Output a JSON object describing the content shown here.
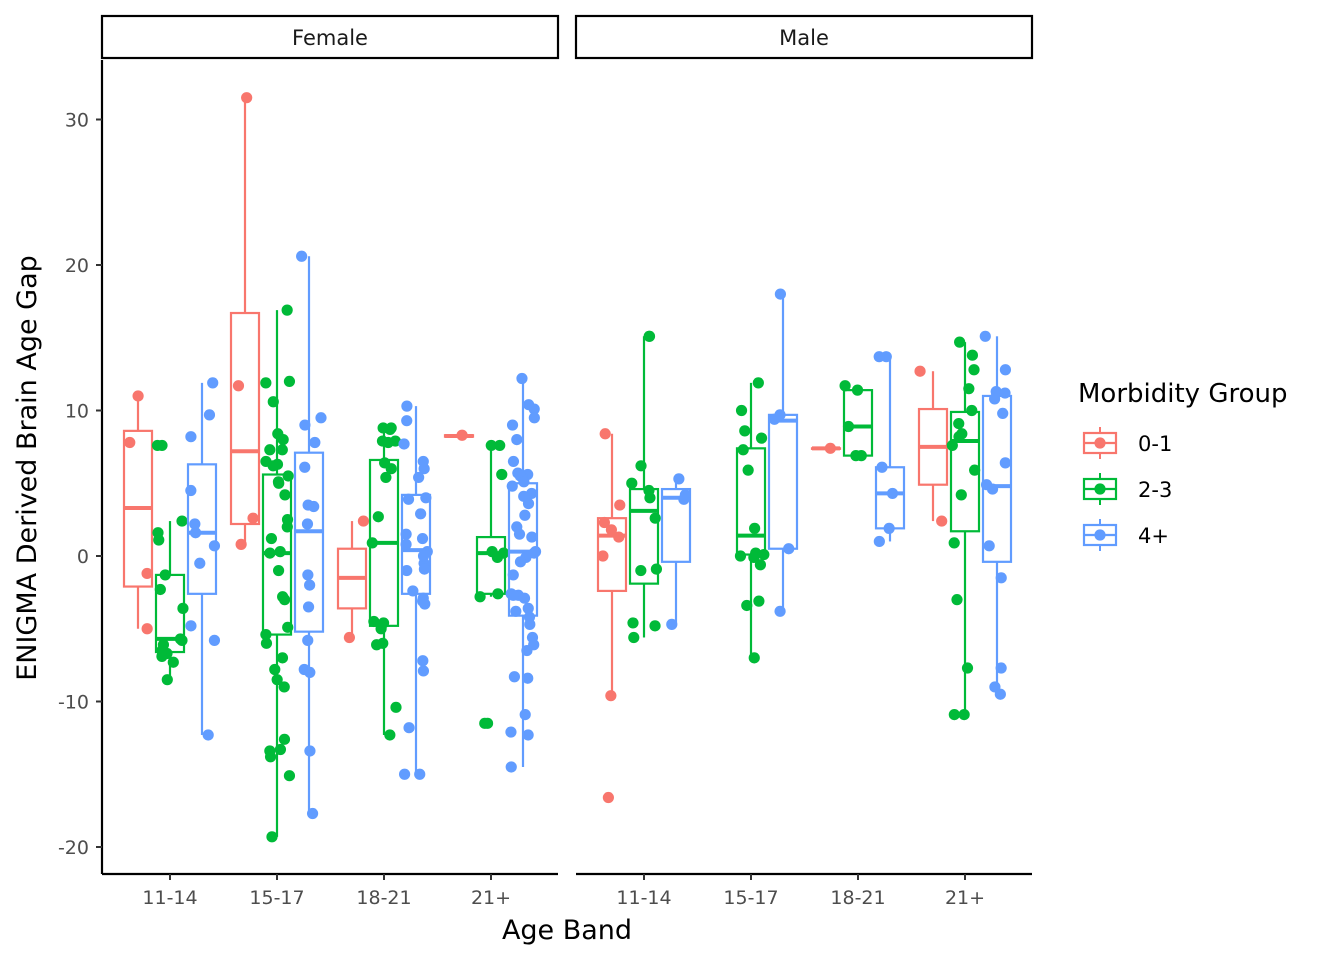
{
  "chart_data": {
    "type": "boxplot",
    "facets": [
      "Female",
      "Male"
    ],
    "categories": [
      "11-14",
      "15-17",
      "18-21",
      "21+"
    ],
    "xlabel": "Age Band",
    "ylabel": "ENIGMA Derived Brain Age Gap",
    "ylim": [
      -22,
      34
    ],
    "yticks": [
      -20,
      -10,
      0,
      10,
      20,
      30
    ],
    "grid": false,
    "legend": {
      "title": "Morbidity Group",
      "position": "right",
      "entries": [
        "0-1",
        "2-3",
        "4+"
      ]
    },
    "groups": [
      {
        "name": "0-1",
        "color": "#F8766D"
      },
      {
        "name": "2-3",
        "color": "#00BA38"
      },
      {
        "name": "4+",
        "color": "#619CFF"
      }
    ],
    "boxes": {
      "Female": {
        "11-14": {
          "0-1": {
            "whisker_low": -5,
            "q1": -2.1,
            "median": 3.3,
            "q3": 8.6,
            "whisker_high": 11,
            "points": [
              7.8,
              11,
              -1.2,
              -5
            ]
          },
          "2-3": {
            "whisker_low": -8.5,
            "q1": -6.6,
            "median": -5.7,
            "q3": -1.3,
            "whisker_high": 2.4,
            "points": [
              1.6,
              1.1,
              2.4,
              -3.6,
              7.6,
              7.6,
              -5.8,
              -6.7,
              -6.9,
              -6.5,
              -2.3,
              -1.3,
              -6.1,
              -7.3,
              -8.5,
              -5.7
            ]
          },
          "4+": {
            "whisker_low": -12.3,
            "q1": -2.6,
            "median": 1.6,
            "q3": 6.3,
            "whisker_high": 11.9,
            "points": [
              11.9,
              8.2,
              -0.5,
              9.7,
              2.2,
              1.6,
              0.7,
              4.5,
              -5.8,
              -12.3,
              -4.8
            ]
          }
        },
        "15-17": {
          "0-1": {
            "whisker_low": 0.8,
            "q1": 2.2,
            "median": 7.2,
            "q3": 16.7,
            "whisker_high": 31.5,
            "points": [
              31.5,
              11.7,
              2.6,
              0.8
            ]
          },
          "2-3": {
            "whisker_low": -19.3,
            "q1": -5.4,
            "median": 0.2,
            "q3": 5.6,
            "whisker_high": 16.9,
            "points": [
              16.9,
              10.6,
              8.4,
              7.3,
              6.3,
              5.5,
              4.2,
              1.2,
              0.3,
              -3.0,
              -4.9,
              -5.4,
              -7.8,
              -12.6,
              -13.4,
              -13.8,
              -15.1,
              11.9,
              12.0,
              8.0,
              6.5,
              5.0,
              2.5,
              0.2,
              -1.0,
              -6.0,
              -7.0,
              -8.5,
              -9.0,
              -13.3,
              -19.3,
              7.3,
              6.2,
              5.1,
              2.0,
              -2.8
            ]
          },
          "4+": {
            "whisker_low": -17.7,
            "q1": -5.2,
            "median": 1.7,
            "q3": 7.1,
            "whisker_high": 20.6,
            "points": [
              20.6,
              9.5,
              7.8,
              3.5,
              2.2,
              -2.0,
              -3.5,
              -5.8,
              -7.8,
              -8.0,
              -13.4,
              -17.7,
              9.0,
              6.1,
              3.4,
              -1.3
            ]
          }
        },
        "18-21": {
          "0-1": {
            "whisker_low": -5.5,
            "q1": -3.6,
            "median": -1.5,
            "q3": 0.5,
            "whisker_high": 2.4,
            "points": [
              2.4,
              -5.6
            ]
          },
          "2-3": {
            "whisker_low": -12.3,
            "q1": -4.8,
            "median": 0.9,
            "q3": 6.6,
            "whisker_high": 8.8,
            "points": [
              8.8,
              8.7,
              7.9,
              7.8,
              6.0,
              5.4,
              2.7,
              0.9,
              -4.5,
              -5.0,
              -6.1,
              -10.4,
              -12.3,
              8.8,
              7.9,
              6.4,
              -4.6,
              -6.0
            ]
          },
          "4+": {
            "whisker_low": -15,
            "q1": -2.6,
            "median": 0.4,
            "q3": 4.2,
            "whisker_high": 10.3,
            "points": [
              10.3,
              9.3,
              7.7,
              6.0,
              5.4,
              3.9,
              2.9,
              1.5,
              0.8,
              0.3,
              -0.5,
              -0.9,
              -1.0,
              -2.4,
              -2.9,
              -3.3,
              -7.2,
              -7.9,
              -11.8,
              -15.0,
              -15.0,
              6.5,
              4.0,
              1.2,
              0.0,
              -3.1
            ]
          }
        },
        "21+": {
          "0-1": {
            "whisker_low": 8.2,
            "q1": 8.2,
            "median": 8.25,
            "q3": 8.3,
            "whisker_high": 8.3,
            "points": [
              8.3
            ]
          },
          "2-3": {
            "whisker_low": -2.8,
            "q1": -2.6,
            "median": 0.2,
            "q3": 1.3,
            "whisker_high": 7.6,
            "points": [
              7.6,
              7.6,
              5.6,
              0.3,
              0.2,
              -0.1,
              -2.6,
              -2.8,
              -11.5,
              -11.5
            ]
          },
          "4+": {
            "whisker_low": -14.5,
            "q1": -4.1,
            "median": 0.3,
            "q3": 5.0,
            "whisker_high": 12.2,
            "points": [
              12.2,
              10.4,
              10.1,
              9.5,
              9.0,
              8.0,
              6.5,
              5.7,
              5.6,
              5.5,
              5.5,
              5.1,
              4.8,
              4.3,
              4.1,
              3.6,
              2.8,
              2.0,
              1.5,
              1.3,
              0.3,
              0.2,
              -0.1,
              -0.4,
              -1.3,
              -2.6,
              -2.7,
              -2.7,
              -2.9,
              -3.6,
              -3.8,
              -4.2,
              -4.7,
              -5.6,
              -6.1,
              -6.5,
              -8.3,
              -8.4,
              -10.9,
              -12.1,
              -12.3,
              -14.5
            ]
          }
        }
      },
      "Male": {
        "11-14": {
          "0-1": {
            "whisker_low": -9.7,
            "q1": -2.4,
            "median": 1.4,
            "q3": 2.6,
            "whisker_high": 8.4,
            "points": [
              8.4,
              3.5,
              2.3,
              1.8,
              1.3,
              0.0,
              -9.6,
              -16.6
            ]
          },
          "2-3": {
            "whisker_low": -5.6,
            "q1": -1.9,
            "median": 3.1,
            "q3": 4.6,
            "whisker_high": 15.1,
            "points": [
              15.1,
              15.1,
              6.2,
              5.0,
              4.5,
              4.0,
              2.6,
              -1.0,
              -0.9,
              -4.6,
              -4.8,
              -5.6
            ]
          },
          "4+": {
            "whisker_low": -4.7,
            "q1": -0.4,
            "median": 4.0,
            "q3": 4.6,
            "whisker_high": 5.3,
            "points": [
              5.3,
              4.2,
              3.9,
              -4.7
            ]
          }
        },
        "15-17": {
          "0-1": {
            "whisker_low": null,
            "q1": null,
            "median": null,
            "q3": null,
            "whisker_high": null,
            "points": []
          },
          "2-3": {
            "whisker_low": -7.0,
            "q1": 0.1,
            "median": 1.4,
            "q3": 7.4,
            "whisker_high": 11.9,
            "points": [
              11.9,
              10.0,
              8.6,
              8.1,
              7.3,
              5.9,
              1.9,
              0.2,
              0.1,
              0.0,
              -0.1,
              -0.6,
              -3.1,
              -3.4,
              -7.0
            ]
          },
          "4+": {
            "whisker_low": -3.8,
            "q1": 0.5,
            "median": 9.3,
            "q3": 9.7,
            "whisker_high": 18.0,
            "points": [
              18.0,
              9.7,
              9.4,
              0.5,
              -3.8
            ]
          }
        },
        "18-21": {
          "0-1": {
            "whisker_low": 7.4,
            "q1": 7.4,
            "median": 7.4,
            "q3": 7.4,
            "whisker_high": 7.4,
            "points": [
              7.4
            ]
          },
          "2-3": {
            "whisker_low": 6.9,
            "q1": 6.9,
            "median": 8.9,
            "q3": 11.4,
            "whisker_high": 11.7,
            "points": [
              11.7,
              11.4,
              8.9,
              6.9,
              6.9
            ]
          },
          "4+": {
            "whisker_low": 1.0,
            "q1": 1.9,
            "median": 4.3,
            "q3": 6.1,
            "whisker_high": 13.7,
            "points": [
              13.7,
              13.7,
              6.1,
              4.3,
              1.9,
              1.0
            ]
          }
        },
        "21+": {
          "0-1": {
            "whisker_low": 2.4,
            "q1": 4.9,
            "median": 7.5,
            "q3": 10.1,
            "whisker_high": 12.7,
            "points": [
              12.7,
              2.4
            ]
          },
          "2-3": {
            "whisker_low": -10.9,
            "q1": 1.7,
            "median": 7.9,
            "q3": 9.9,
            "whisker_high": 14.7,
            "points": [
              14.7,
              13.8,
              12.8,
              11.5,
              10.0,
              9.1,
              8.4,
              8.2,
              7.6,
              5.9,
              4.2,
              0.9,
              -3.0,
              -7.7,
              -10.9,
              -10.9
            ]
          },
          "4+": {
            "whisker_low": -9.5,
            "q1": -0.4,
            "median": 4.8,
            "q3": 11.0,
            "whisker_high": 15.1,
            "points": [
              15.1,
              12.8,
              11.3,
              11.2,
              10.8,
              9.8,
              6.4,
              4.9,
              4.6,
              0.7,
              -1.5,
              -7.7,
              -9.0,
              -9.5
            ]
          }
        }
      }
    }
  }
}
